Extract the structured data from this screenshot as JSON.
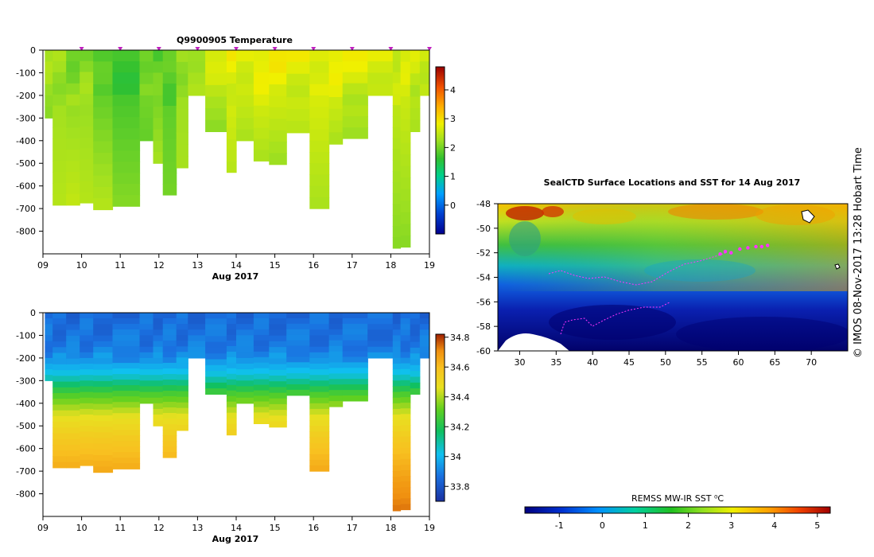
{
  "chart_data": [
    {
      "type": "heatmap",
      "title": "Q9900905  Temperature",
      "xlabel": "Aug 2017",
      "ylabel": "",
      "xlim": [
        9,
        19
      ],
      "ylim": [
        -900,
        0
      ],
      "x_ticks": [
        "09",
        "10",
        "11",
        "12",
        "13",
        "14",
        "15",
        "16",
        "17",
        "18",
        "19"
      ],
      "y_ticks": [
        "0",
        "-100",
        "-200",
        "-300",
        "-400",
        "-500",
        "-600",
        "-700",
        "-800"
      ],
      "profile_markers_x": [
        10,
        11,
        12,
        13,
        14,
        15,
        16,
        17,
        18,
        19
      ],
      "colorbar": {
        "min": -1,
        "max": 4.8,
        "ticks": [
          "0",
          "1",
          "2",
          "3",
          "4"
        ],
        "tick_values": [
          0,
          1,
          2,
          3,
          4
        ]
      },
      "profiles": [
        {
          "t0": 9.05,
          "t1": 9.25,
          "max_depth": 300,
          "surface": 2.3,
          "deep": 2.1
        },
        {
          "t0": 9.25,
          "t1": 9.6,
          "max_depth": 685,
          "surface": 2.2,
          "deep": 2.4
        },
        {
          "t0": 9.6,
          "t1": 9.95,
          "max_depth": 685,
          "surface": 2.0,
          "deep": 2.5
        },
        {
          "t0": 9.95,
          "t1": 10.3,
          "max_depth": 675,
          "surface": 2.1,
          "deep": 2.4
        },
        {
          "t0": 10.3,
          "t1": 10.8,
          "max_depth": 705,
          "surface": 1.7,
          "deep": 2.4
        },
        {
          "t0": 10.8,
          "t1": 11.5,
          "max_depth": 690,
          "surface": 1.6,
          "deep": 2.1
        },
        {
          "t0": 11.5,
          "t1": 11.85,
          "max_depth": 400,
          "surface": 2.1,
          "deep": 1.9
        },
        {
          "t0": 11.85,
          "t1": 12.1,
          "max_depth": 500,
          "surface": 1.8,
          "deep": 2.3
        },
        {
          "t0": 12.1,
          "t1": 12.45,
          "max_depth": 640,
          "surface": 1.8,
          "deep": 2.0
        },
        {
          "t0": 12.45,
          "t1": 12.75,
          "max_depth": 520,
          "surface": 2.2,
          "deep": 2.3
        },
        {
          "t0": 12.75,
          "t1": 13.2,
          "max_depth": 200,
          "surface": 2.4,
          "deep": 2.2
        },
        {
          "t0": 13.2,
          "t1": 13.75,
          "max_depth": 360,
          "surface": 2.7,
          "deep": 2.1
        },
        {
          "t0": 13.75,
          "t1": 14.0,
          "max_depth": 540,
          "surface": 2.8,
          "deep": 2.4
        },
        {
          "t0": 14.0,
          "t1": 14.45,
          "max_depth": 400,
          "surface": 2.8,
          "deep": 2.3
        },
        {
          "t0": 14.45,
          "t1": 14.85,
          "max_depth": 490,
          "surface": 2.9,
          "deep": 2.3
        },
        {
          "t0": 14.85,
          "t1": 15.3,
          "max_depth": 505,
          "surface": 2.9,
          "deep": 2.2
        },
        {
          "t0": 15.3,
          "t1": 15.9,
          "max_depth": 365,
          "surface": 2.8,
          "deep": 2.4
        },
        {
          "t0": 15.9,
          "t1": 16.4,
          "max_depth": 700,
          "surface": 2.8,
          "deep": 2.3
        },
        {
          "t0": 16.4,
          "t1": 16.75,
          "max_depth": 415,
          "surface": 2.9,
          "deep": 2.3
        },
        {
          "t0": 16.75,
          "t1": 17.4,
          "max_depth": 390,
          "surface": 2.8,
          "deep": 2.2
        },
        {
          "t0": 17.4,
          "t1": 18.05,
          "max_depth": 200,
          "surface": 2.7,
          "deep": 2.6
        },
        {
          "t0": 18.05,
          "t1": 18.25,
          "max_depth": 875,
          "surface": 2.6,
          "deep": 2.1
        },
        {
          "t0": 18.25,
          "t1": 18.5,
          "max_depth": 870,
          "surface": 2.7,
          "deep": 2.1
        },
        {
          "t0": 18.5,
          "t1": 18.75,
          "max_depth": 360,
          "surface": 2.6,
          "deep": 2.3
        },
        {
          "t0": 18.75,
          "t1": 19.05,
          "max_depth": 200,
          "surface": 2.6,
          "deep": 2.5
        }
      ]
    },
    {
      "type": "heatmap",
      "title": "",
      "xlabel": "Aug 2017",
      "ylabel": "",
      "xlim": [
        9,
        19
      ],
      "ylim": [
        -900,
        0
      ],
      "x_ticks": [
        "09",
        "10",
        "11",
        "12",
        "13",
        "14",
        "15",
        "16",
        "17",
        "18",
        "19"
      ],
      "y_ticks": [
        "0",
        "-100",
        "-200",
        "-300",
        "-400",
        "-500",
        "-600",
        "-700",
        "-800"
      ],
      "colorbar": {
        "min": 33.7,
        "max": 34.82,
        "ticks": [
          "33.8",
          "34",
          "34.2",
          "34.4",
          "34.6",
          "34.8"
        ],
        "tick_values": [
          33.8,
          34.0,
          34.2,
          34.4,
          34.6,
          34.8
        ]
      },
      "salinity_profile": [
        {
          "depth": 0,
          "value": 33.85
        },
        {
          "depth": 150,
          "value": 33.88
        },
        {
          "depth": 220,
          "value": 33.95
        },
        {
          "depth": 280,
          "value": 34.05
        },
        {
          "depth": 360,
          "value": 34.28
        },
        {
          "depth": 450,
          "value": 34.45
        },
        {
          "depth": 550,
          "value": 34.55
        },
        {
          "depth": 650,
          "value": 34.62
        },
        {
          "depth": 750,
          "value": 34.68
        },
        {
          "depth": 880,
          "value": 34.74
        }
      ]
    },
    {
      "type": "heatmap",
      "title": "SealCTD Surface Locations and SST for 14 Aug 2017",
      "xlabel": "",
      "ylabel": "",
      "xlim": [
        27,
        75
      ],
      "ylim": [
        -60,
        -48
      ],
      "x_ticks": [
        "30",
        "35",
        "40",
        "45",
        "50",
        "55",
        "60",
        "65",
        "70"
      ],
      "x_tick_values": [
        30,
        35,
        40,
        45,
        50,
        55,
        60,
        65,
        70
      ],
      "y_ticks": [
        "-48",
        "-50",
        "-52",
        "-54",
        "-56",
        "-58",
        "-60"
      ],
      "y_tick_values": [
        -48,
        -50,
        -52,
        -54,
        -56,
        -58,
        -60
      ],
      "colorbar": {
        "label": "REMSS MW-IR SST ⁰C",
        "min": -1.8,
        "max": 5.3,
        "ticks": [
          "-1",
          "0",
          "1",
          "2",
          "3",
          "4",
          "5"
        ],
        "tick_values": [
          -1,
          0,
          1,
          2,
          3,
          4,
          5
        ]
      },
      "seal_locations": [
        {
          "lon": 57.5,
          "lat": -52.1
        },
        {
          "lon": 58.2,
          "lat": -51.9
        },
        {
          "lon": 59.0,
          "lat": -52.0
        },
        {
          "lon": 60.2,
          "lat": -51.7
        },
        {
          "lon": 61.3,
          "lat": -51.6
        },
        {
          "lon": 62.4,
          "lat": -51.5
        },
        {
          "lon": 63.2,
          "lat": -51.5
        },
        {
          "lon": 64.0,
          "lat": -51.4
        }
      ]
    }
  ],
  "credit": "© IMOS 08-Nov-2017 13:28 Hobart Time",
  "colors": {
    "seal_track": "#ff33ff",
    "land": "#ffffff",
    "background": "#ffffff"
  }
}
